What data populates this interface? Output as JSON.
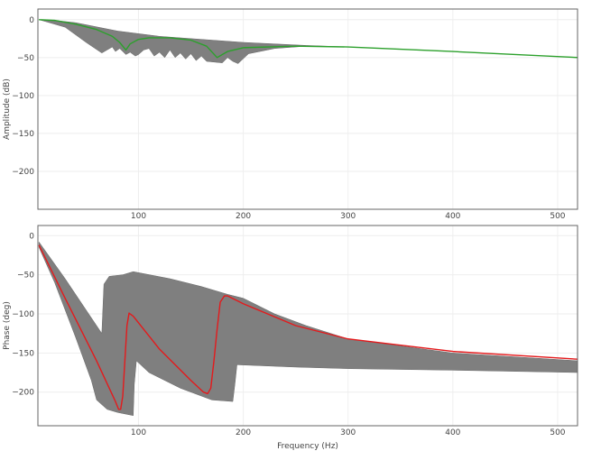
{
  "chart_data": [
    {
      "type": "area",
      "ylabel": "Amplitude (dB)",
      "xlabel": "",
      "xlim": [
        4,
        519
      ],
      "ylim": [
        -250,
        14
      ],
      "xticks": [
        100,
        200,
        300,
        400,
        500
      ],
      "yticks": [
        0,
        -50,
        -100,
        -150,
        -200
      ],
      "grid": true,
      "line_color": "#2ca02c",
      "band_color": "#7f7f7f",
      "line": {
        "x": [
          5,
          20,
          40,
          60,
          75,
          82,
          88,
          92,
          100,
          110,
          130,
          150,
          165,
          175,
          185,
          200,
          250,
          300,
          400,
          520
        ],
        "y": [
          0,
          -1,
          -6,
          -13,
          -22,
          -30,
          -40,
          -32,
          -26,
          -24,
          -24,
          -27,
          -35,
          -50,
          -42,
          -37,
          -35,
          -36,
          -42,
          -50
        ]
      },
      "band_upper": {
        "x": [
          5,
          20,
          40,
          80,
          120,
          200,
          260,
          300,
          400,
          520
        ],
        "y": [
          0,
          -1,
          -4,
          -15,
          -22,
          -30,
          -34,
          -36,
          -42,
          -50
        ]
      },
      "band_lower": {
        "x": [
          5,
          30,
          50,
          65,
          70,
          75,
          78,
          82,
          88,
          92,
          97,
          100,
          105,
          110,
          115,
          120,
          125,
          130,
          135,
          140,
          145,
          150,
          155,
          160,
          165,
          180,
          185,
          190,
          195,
          205,
          230,
          260,
          300,
          400,
          520
        ],
        "y": [
          0,
          -10,
          -30,
          -44,
          -40,
          -36,
          -42,
          -38,
          -46,
          -43,
          -48,
          -46,
          -40,
          -38,
          -48,
          -43,
          -50,
          -40,
          -50,
          -44,
          -52,
          -45,
          -54,
          -48,
          -55,
          -57,
          -50,
          -55,
          -58,
          -45,
          -38,
          -35,
          -36,
          -42,
          -50
        ]
      }
    },
    {
      "type": "area",
      "ylabel": "Phase (deg)",
      "xlabel": "Frequency (Hz)",
      "xlim": [
        4,
        519
      ],
      "ylim": [
        -243,
        13
      ],
      "xticks": [
        100,
        200,
        300,
        400,
        500
      ],
      "yticks": [
        0,
        -50,
        -100,
        -150,
        -200
      ],
      "grid": true,
      "line_color": "#e41a1c",
      "band_color": "#7f7f7f",
      "line": {
        "x": [
          5,
          30,
          60,
          78,
          81,
          83,
          85,
          87,
          89,
          91,
          95,
          120,
          150,
          162,
          166,
          169,
          172,
          175,
          178,
          182,
          185,
          200,
          250,
          300,
          400,
          520
        ],
        "y": [
          -12,
          -80,
          -160,
          -212,
          -222,
          -222,
          -205,
          -160,
          -115,
          -99,
          -103,
          -145,
          -185,
          -200,
          -202,
          -195,
          -160,
          -120,
          -85,
          -77,
          -77,
          -87,
          -115,
          -132,
          -148,
          -158
        ]
      },
      "band_upper": {
        "x": [
          5,
          30,
          50,
          65,
          67,
          72,
          85,
          95,
          130,
          160,
          185,
          200,
          230,
          260,
          300,
          400,
          520
        ],
        "y": [
          -8,
          -55,
          -95,
          -125,
          -62,
          -52,
          -50,
          -46,
          -55,
          -65,
          -75,
          -80,
          -100,
          -115,
          -132,
          -150,
          -160
        ]
      },
      "band_lower": {
        "x": [
          5,
          20,
          40,
          55,
          60,
          70,
          80,
          95,
          96,
          98,
          110,
          140,
          170,
          190,
          192,
          194,
          250,
          300,
          400,
          520
        ],
        "y": [
          -15,
          -60,
          -130,
          -185,
          -210,
          -222,
          -226,
          -230,
          -190,
          -160,
          -175,
          -195,
          -210,
          -212,
          -190,
          -165,
          -168,
          -170,
          -172,
          -175
        ]
      }
    }
  ]
}
